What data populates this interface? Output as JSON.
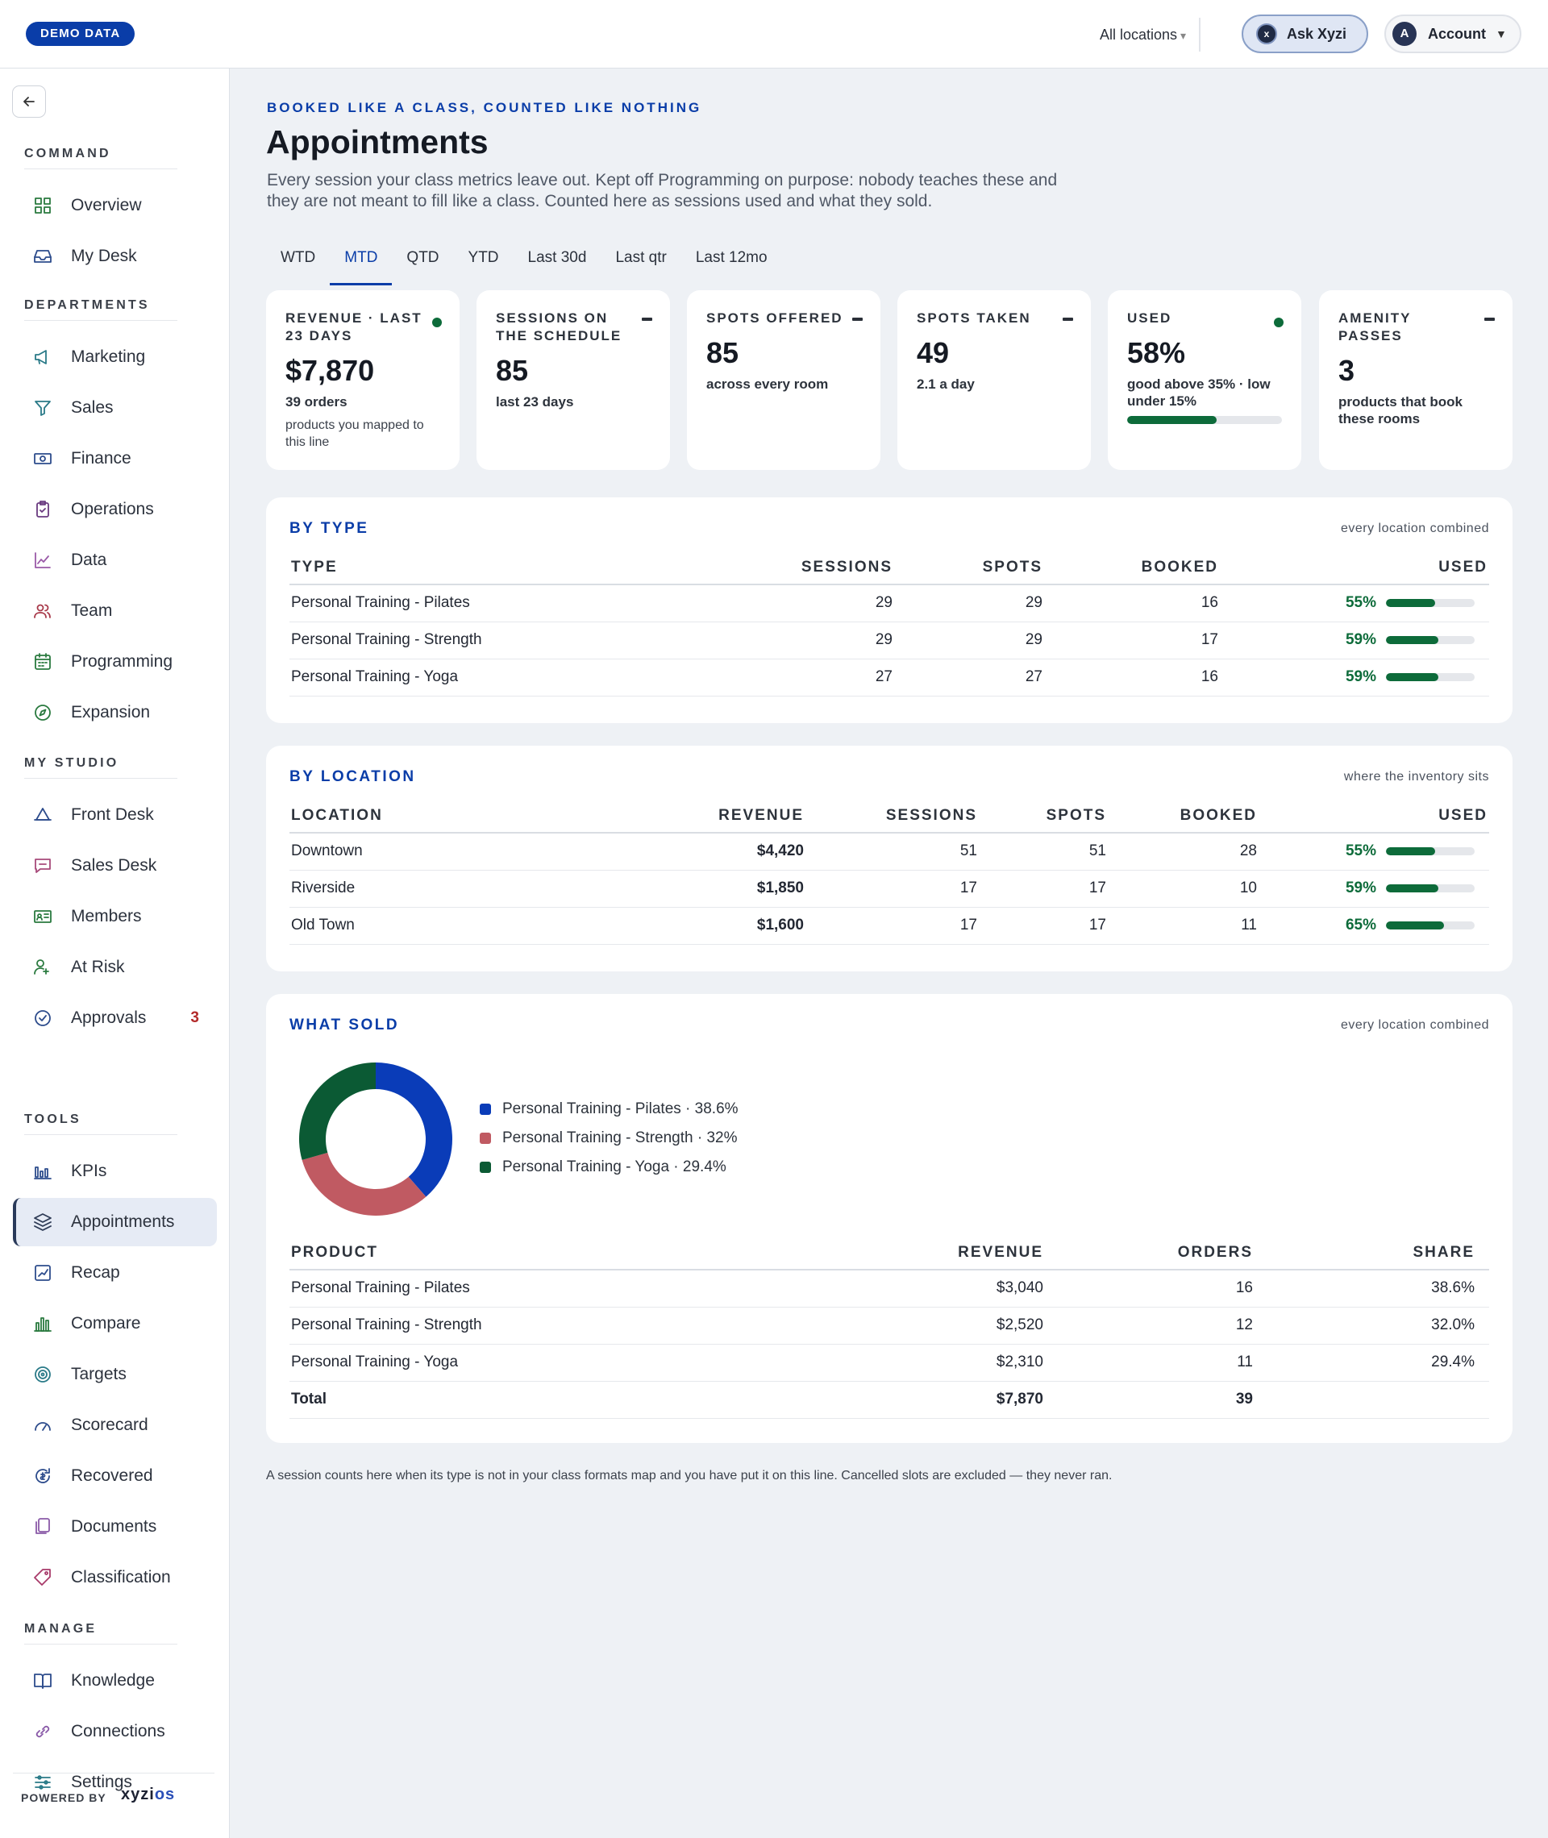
{
  "topbar": {
    "demo_label": "DEMO DATA",
    "location_select": "All locations",
    "ask_label": "Ask Xyzi",
    "ask_icon": "x",
    "account_initial": "A",
    "account_label": "Account"
  },
  "sidebar": {
    "sections": [
      {
        "title": "COMMAND",
        "items": [
          {
            "label": "Overview",
            "icon": "grid-icon"
          },
          {
            "label": "My Desk",
            "icon": "inbox-icon"
          }
        ]
      },
      {
        "title": "DEPARTMENTS",
        "items": [
          {
            "label": "Marketing",
            "icon": "megaphone-icon"
          },
          {
            "label": "Sales",
            "icon": "filter-icon"
          },
          {
            "label": "Finance",
            "icon": "banknote-icon"
          },
          {
            "label": "Operations",
            "icon": "clipboard-check-icon"
          },
          {
            "label": "Data",
            "icon": "line-chart-icon"
          },
          {
            "label": "Team",
            "icon": "users-icon"
          },
          {
            "label": "Programming",
            "icon": "calendar-icon"
          },
          {
            "label": "Expansion",
            "icon": "compass-icon"
          }
        ]
      },
      {
        "title": "MY STUDIO",
        "items": [
          {
            "label": "Front Desk",
            "icon": "bell-desk-icon"
          },
          {
            "label": "Sales Desk",
            "icon": "message-icon"
          },
          {
            "label": "Members",
            "icon": "id-card-icon"
          },
          {
            "label": "At Risk",
            "icon": "user-alert-icon"
          },
          {
            "label": "Approvals",
            "icon": "check-circle-icon",
            "badge": "3"
          }
        ]
      },
      {
        "title": "TOOLS",
        "items": [
          {
            "label": "KPIs",
            "icon": "bar-chart-icon"
          },
          {
            "label": "Appointments",
            "icon": "layers-icon",
            "active": true
          },
          {
            "label": "Recap",
            "icon": "trend-card-icon"
          },
          {
            "label": "Compare",
            "icon": "column-chart-icon"
          },
          {
            "label": "Targets",
            "icon": "target-icon"
          },
          {
            "label": "Scorecard",
            "icon": "gauge-icon"
          },
          {
            "label": "Recovered",
            "icon": "recover-icon"
          },
          {
            "label": "Documents",
            "icon": "documents-icon"
          },
          {
            "label": "Classification",
            "icon": "tag-icon"
          }
        ]
      },
      {
        "title": "MANAGE",
        "items": [
          {
            "label": "Knowledge",
            "icon": "book-icon"
          },
          {
            "label": "Connections",
            "icon": "link-icon"
          },
          {
            "label": "Settings",
            "icon": "sliders-icon"
          }
        ]
      }
    ],
    "powered_by": "POWERED BY",
    "brand_a": "xyzi",
    "brand_b": "os"
  },
  "header": {
    "eyebrow": "BOOKED LIKE A CLASS, COUNTED LIKE NOTHING",
    "title": "Appointments",
    "description": "Every session your class metrics leave out. Kept off Programming on purpose: nobody teaches these and they are not meant to fill like a class. Counted here as sessions used and what they sold."
  },
  "tabs": [
    {
      "label": "WTD"
    },
    {
      "label": "MTD",
      "active": true
    },
    {
      "label": "QTD"
    },
    {
      "label": "YTD"
    },
    {
      "label": "Last 30d"
    },
    {
      "label": "Last qtr"
    },
    {
      "label": "Last 12mo"
    }
  ],
  "kpis": [
    {
      "label": "REVENUE · LAST 23 DAYS",
      "value": "$7,870",
      "sub": "39 orders",
      "note": "products you mapped to this line",
      "mark": "dot"
    },
    {
      "label": "SESSIONS ON THE SCHEDULE",
      "value": "85",
      "sub": "last 23 days",
      "mark": "dash"
    },
    {
      "label": "SPOTS OFFERED",
      "value": "85",
      "sub": "across every room",
      "mark": "dash"
    },
    {
      "label": "SPOTS TAKEN",
      "value": "49",
      "sub": "2.1 a day",
      "mark": "dash"
    },
    {
      "label": "USED",
      "value": "58%",
      "sub": "good above 35% · low under 15%",
      "mark": "dot",
      "bar": 0.58
    },
    {
      "label": "AMENITY PASSES",
      "value": "3",
      "sub": "products that book these rooms",
      "mark": "dash"
    }
  ],
  "by_type": {
    "title": "BY TYPE",
    "note": "every location combined",
    "headers": [
      "TYPE",
      "SESSIONS",
      "SPOTS",
      "BOOKED",
      "USED"
    ],
    "rows": [
      {
        "type": "Personal Training - Pilates",
        "sessions": "29",
        "spots": "29",
        "booked": "16",
        "used": "55%",
        "used_frac": 0.55
      },
      {
        "type": "Personal Training - Strength",
        "sessions": "29",
        "spots": "29",
        "booked": "17",
        "used": "59%",
        "used_frac": 0.59
      },
      {
        "type": "Personal Training - Yoga",
        "sessions": "27",
        "spots": "27",
        "booked": "16",
        "used": "59%",
        "used_frac": 0.59
      }
    ]
  },
  "by_location": {
    "title": "BY LOCATION",
    "note": "where the inventory sits",
    "headers": [
      "LOCATION",
      "REVENUE",
      "SESSIONS",
      "SPOTS",
      "BOOKED",
      "USED"
    ],
    "rows": [
      {
        "location": "Downtown",
        "revenue": "$4,420",
        "sessions": "51",
        "spots": "51",
        "booked": "28",
        "used": "55%",
        "used_frac": 0.55
      },
      {
        "location": "Riverside",
        "revenue": "$1,850",
        "sessions": "17",
        "spots": "17",
        "booked": "10",
        "used": "59%",
        "used_frac": 0.59
      },
      {
        "location": "Old Town",
        "revenue": "$1,600",
        "sessions": "17",
        "spots": "17",
        "booked": "11",
        "used": "65%",
        "used_frac": 0.65
      }
    ]
  },
  "what_sold": {
    "title": "WHAT SOLD",
    "note": "every location combined",
    "legend": [
      "Personal Training - Pilates · 38.6%",
      "Personal Training - Strength · 32%",
      "Personal Training - Yoga · 29.4%"
    ],
    "headers": [
      "PRODUCT",
      "REVENUE",
      "ORDERS",
      "SHARE"
    ],
    "rows": [
      {
        "product": "Personal Training - Pilates",
        "revenue": "$3,040",
        "orders": "16",
        "share": "38.6%"
      },
      {
        "product": "Personal Training - Strength",
        "revenue": "$2,520",
        "orders": "12",
        "share": "32.0%"
      },
      {
        "product": "Personal Training - Yoga",
        "revenue": "$2,310",
        "orders": "11",
        "share": "29.4%"
      }
    ],
    "total": {
      "label": "Total",
      "revenue": "$7,870",
      "orders": "39"
    }
  },
  "chart_data": {
    "type": "pie",
    "categories": [
      "Personal Training - Pilates",
      "Personal Training - Strength",
      "Personal Training - Yoga"
    ],
    "values": [
      38.6,
      32,
      29.4
    ],
    "colors": [
      "#0a3cb8",
      "#c05a62",
      "#0b5a34"
    ],
    "donut": true
  },
  "footnote": "A session counts here when its type is not in your class formats map and you have put it on this line. Cancelled slots are excluded — they never ran."
}
